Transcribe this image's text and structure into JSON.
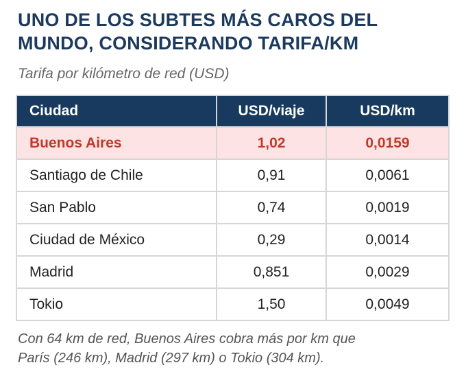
{
  "title_line1": "UNO DE LOS SUBTES MÁS CAROS DEL",
  "title_line2": "MUNDO, CONSIDERANDO TARIFA/KM",
  "subtitle": "Tarifa por kilómetro de red (USD)",
  "table": {
    "headers": [
      "Ciudad",
      "USD/viaje",
      "USD/km"
    ],
    "rows": [
      [
        "Buenos Aires",
        "1,02",
        "0,0159"
      ],
      [
        "Santiago de Chile",
        "0,91",
        "0,0061"
      ],
      [
        "San Pablo",
        "0,74",
        "0,0019"
      ],
      [
        "Ciudad de México",
        "0,29",
        "0,0014"
      ],
      [
        "Madrid",
        "0,851",
        "0,0029"
      ],
      [
        "Tokio",
        "1,50",
        "0,0049"
      ]
    ]
  },
  "footer_line1": "Con 64 km de red, Buenos Aires cobra más por km que",
  "footer_line2": "París (246 km), Madrid (297 km) o Tokio (304 km).",
  "colors": {
    "header": "#173a5e",
    "highlight_bg": "#fde3e3",
    "highlight_text": "#c0392b"
  }
}
